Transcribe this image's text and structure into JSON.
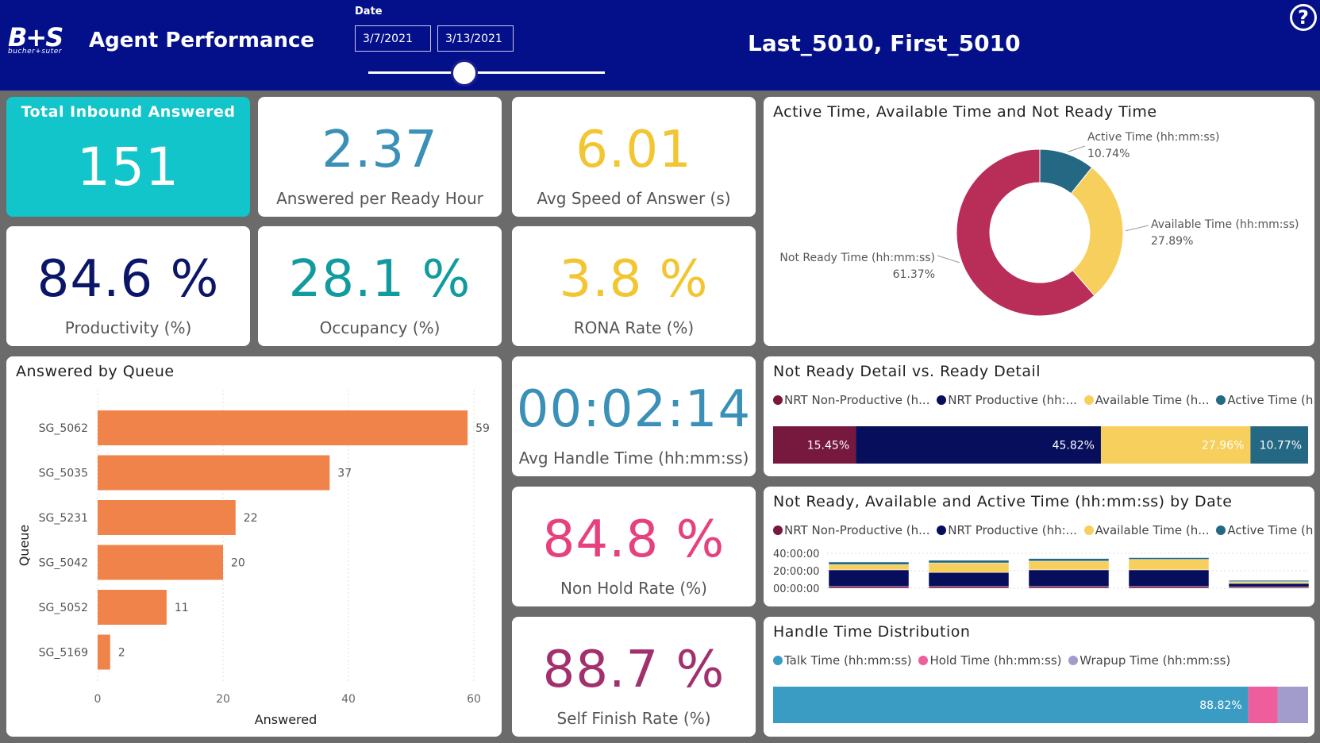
{
  "header": {
    "logo_text": "B+S",
    "logo_sub": "bucher+suter",
    "title": "Agent Performance",
    "date_label": "Date",
    "date_start": "3/7/2021",
    "date_end": "3/13/2021",
    "agent_name": "Last_5010, First_5010",
    "help_glyph": "?"
  },
  "colors": {
    "header_bg": "#04108a",
    "teal": "#12c5cb",
    "blue": "#3b90b8",
    "yellow": "#f2c531",
    "navy": "#0b1668",
    "green": "#119b9e",
    "orange": "#f0834a",
    "pink": "#e6407e",
    "purple": "#a2306e",
    "crimson": "#b92d59",
    "dark_teal": "#246884",
    "light_yellow": "#f7cf5c",
    "maroon": "#77183f",
    "dark_navy": "#070e5b",
    "lavender": "#a19ccc"
  },
  "kpis": {
    "total_inbound": {
      "label": "Total Inbound Answered",
      "value": "151"
    },
    "answered_per_hour": {
      "label": "Answered per Ready Hour",
      "value": "2.37"
    },
    "avg_speed": {
      "label": "Avg Speed of Answer (s)",
      "value": "6.01"
    },
    "productivity": {
      "label": "Productivity (%)",
      "value": "84.6 %"
    },
    "occupancy": {
      "label": "Occupancy (%)",
      "value": "28.1 %"
    },
    "rona": {
      "label": "RONA Rate (%)",
      "value": "3.8 %"
    },
    "aht": {
      "label": "Avg Handle Time (hh:mm:ss)",
      "value": "00:02:14"
    },
    "non_hold": {
      "label": "Non Hold Rate (%)",
      "value": "84.8 %"
    },
    "self_finish": {
      "label": "Self Finish Rate (%)",
      "value": "88.7 %"
    }
  },
  "chart_data": [
    {
      "id": "donut",
      "type": "pie",
      "title": "Active Time, Available Time and Not Ready Time",
      "slices": [
        {
          "label": "Active Time (hh:mm:ss)",
          "value": 10.74,
          "value_label": "10.74%"
        },
        {
          "label": "Available Time (hh:mm:ss)",
          "value": 27.89,
          "value_label": "27.89%"
        },
        {
          "label": "Not Ready Time (hh:mm:ss)",
          "value": 61.37,
          "value_label": "61.37%"
        }
      ]
    },
    {
      "id": "queue",
      "type": "bar",
      "orientation": "horizontal",
      "title": "Answered by Queue",
      "xlabel": "Answered",
      "ylabel": "Queue",
      "categories": [
        "SG_5062",
        "SG_5035",
        "SG_5231",
        "SG_5042",
        "SG_5052",
        "SG_5169"
      ],
      "values": [
        59,
        37,
        22,
        20,
        11,
        2
      ],
      "xlim": [
        0,
        60
      ],
      "ticks": [
        0,
        20,
        40,
        60
      ],
      "grid": true
    },
    {
      "id": "nrt_detail",
      "type": "bar",
      "orientation": "horizontal",
      "stacked": "percent",
      "title": "Not Ready Detail vs. Ready Detail",
      "legend": [
        "NRT Non-Productive (h...",
        "NRT Productive (hh:...",
        "Available Time (h...",
        "Active Time (h..."
      ],
      "series": [
        {
          "name": "NRT Non-Productive",
          "value": 15.45,
          "value_label": "15.45%"
        },
        {
          "name": "NRT Productive",
          "value": 45.82,
          "value_label": "45.82%"
        },
        {
          "name": "Available Time",
          "value": 27.96,
          "value_label": "27.96%"
        },
        {
          "name": "Active Time",
          "value": 10.77,
          "value_label": "10.77%"
        }
      ]
    },
    {
      "id": "by_date",
      "type": "bar",
      "stacked": true,
      "title": "Not Ready, Available and Active Time (hh:mm:ss) by Date",
      "legend": [
        "NRT Non-Productive (h...",
        "NRT Productive (hh:...",
        "Available Time (h...",
        "Active Time (h..."
      ],
      "y_ticks": [
        "00:00:00",
        "20:00:00",
        "40:00:00"
      ],
      "ylim_hours": [
        0,
        40
      ],
      "series": [
        {
          "name": "NRT Non-Productive",
          "values": [
            2,
            2,
            2,
            2,
            1.5
          ]
        },
        {
          "name": "NRT Productive",
          "values": [
            19,
            16,
            19,
            19,
            4
          ]
        },
        {
          "name": "Available Time",
          "values": [
            6,
            11,
            10,
            12,
            2
          ]
        },
        {
          "name": "Active Time",
          "values": [
            3,
            3,
            3,
            2,
            1.5
          ]
        }
      ]
    },
    {
      "id": "handle_dist",
      "type": "bar",
      "orientation": "horizontal",
      "stacked": "percent",
      "title": "Handle Time Distribution",
      "legend": [
        "Talk Time (hh:mm:ss)",
        "Hold Time (hh:mm:ss)",
        "Wrapup Time (hh:mm:ss)"
      ],
      "series": [
        {
          "name": "Talk Time",
          "value": 88.82,
          "value_label": "88.82%"
        },
        {
          "name": "Hold Time",
          "value": 5.48,
          "value_label": ""
        },
        {
          "name": "Wrapup Time",
          "value": 5.7,
          "value_label": ""
        }
      ]
    }
  ]
}
